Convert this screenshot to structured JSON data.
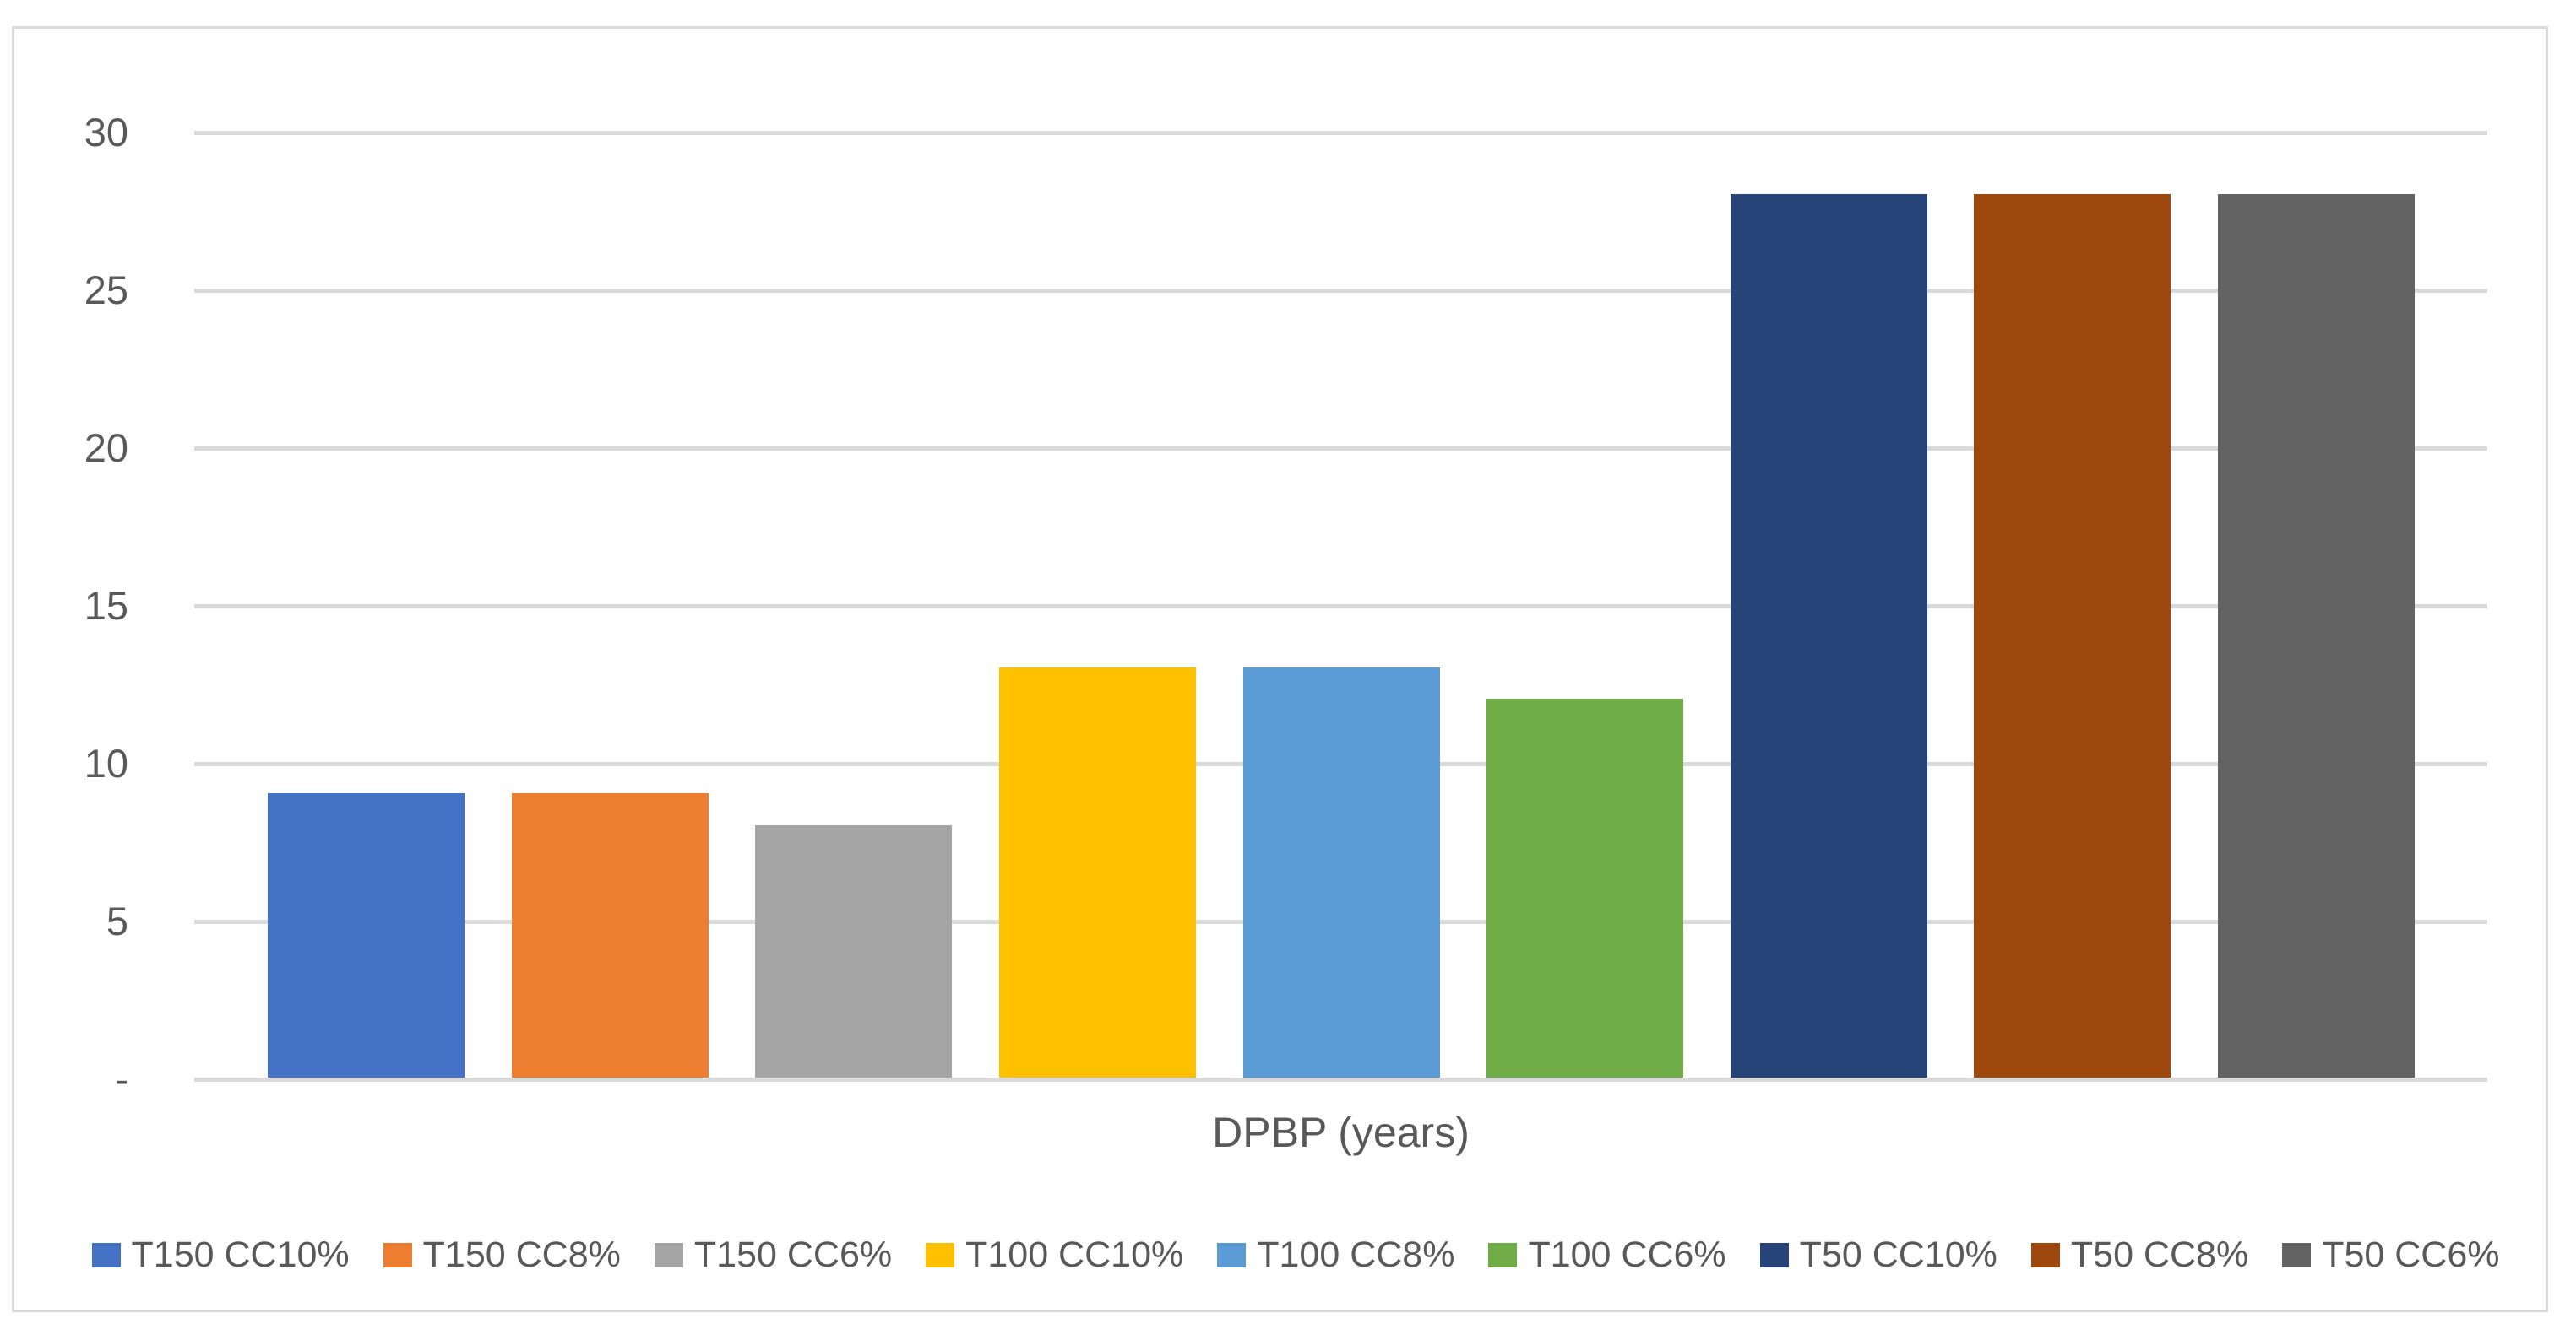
{
  "chart_data": {
    "type": "bar",
    "title": "",
    "xlabel": "DPBP (years)",
    "ylabel": "",
    "categories": [
      "T150 CC10%",
      "T150 CC8%",
      "T150 CC6%",
      "T100 CC10%",
      "T100 CC8%",
      "T100 CC6%",
      "T50 CC10%",
      "T50 CC8%",
      "T50 CC6%"
    ],
    "values": [
      9,
      9,
      8,
      13,
      13,
      12,
      28,
      28,
      28
    ],
    "colors": [
      "#4472C4",
      "#ED7D31",
      "#A5A5A5",
      "#FFC000",
      "#5B9BD5",
      "#70AD47",
      "#264478",
      "#9E480E",
      "#636363"
    ],
    "ylim": [
      0,
      30
    ],
    "ytick_step": 5,
    "ytick_labels": [
      "-",
      "5",
      "10",
      "15",
      "20",
      "25",
      "30"
    ],
    "grid": true,
    "legend_position": "bottom",
    "axis_text_color": "#595959",
    "gridline_color": "#D9D9D9",
    "border_color": "#D9D9D9",
    "background": "#FFFFFF"
  }
}
